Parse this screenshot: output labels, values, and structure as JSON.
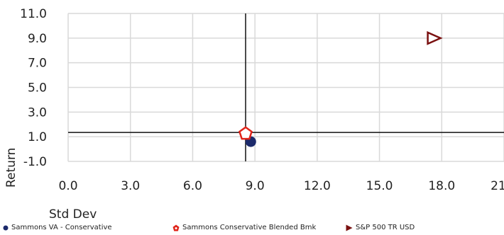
{
  "chart_data": {
    "type": "scatter",
    "xlabel": "Std Dev",
    "ylabel": "Return",
    "xlim": [
      0.0,
      21.0
    ],
    "ylim": [
      -1.0,
      11.0
    ],
    "xticks": [
      "0.0",
      "3.0",
      "6.0",
      "9.0",
      "12.0",
      "15.0",
      "18.0",
      "21.0"
    ],
    "yticks": [
      "11.0",
      "9.0",
      "7.0",
      "5.0",
      "3.0",
      "1.0",
      "-1.0"
    ],
    "xtick_values": [
      0,
      3,
      6,
      9,
      12,
      15,
      18,
      21
    ],
    "ytick_values": [
      11,
      9,
      7,
      5,
      3,
      1,
      -1
    ],
    "grid": true,
    "crosshair": {
      "x": 8.55,
      "y": 1.35
    },
    "legend_position": "bottom",
    "series": [
      {
        "name": "Sammons VA - Conservative",
        "x": 8.8,
        "y": 0.6,
        "marker": "circle",
        "color": "#1c2a6b"
      },
      {
        "name": "Sammons Conservative Blended Bmk",
        "x": 8.55,
        "y": 1.25,
        "marker": "pentagon",
        "color": "#e0251b"
      },
      {
        "name": "S&P 500 TR USD",
        "x": 17.6,
        "y": 9.0,
        "marker": "triangle-right",
        "color": "#7a1010"
      }
    ]
  }
}
